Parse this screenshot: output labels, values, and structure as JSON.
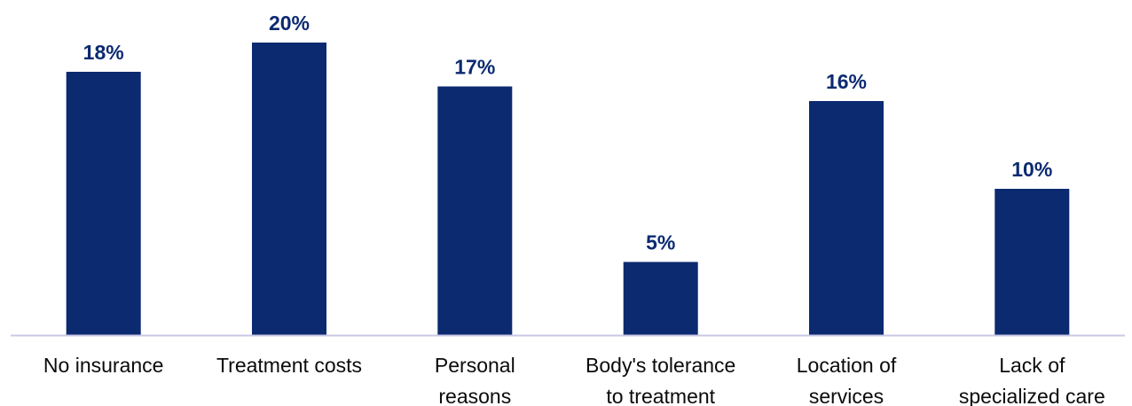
{
  "chart_data": {
    "type": "bar",
    "categories": [
      [
        "No insurance"
      ],
      [
        "Treatment costs"
      ],
      [
        "Personal",
        "reasons"
      ],
      [
        "Body's tolerance",
        "to treatment"
      ],
      [
        "Location of",
        "services"
      ],
      [
        "Lack of",
        "specialized care"
      ]
    ],
    "values": [
      18,
      20,
      17,
      5,
      16,
      10
    ],
    "data_labels": [
      "18%",
      "20%",
      "17%",
      "5%",
      "16%",
      "10%"
    ],
    "ylim": [
      0,
      20
    ],
    "grid": false,
    "legend": "none"
  },
  "colors": {
    "bar": "#0b2a70",
    "label": "#0b2a70",
    "axis": "#c9c9e6",
    "text": "#0b0b0b"
  }
}
